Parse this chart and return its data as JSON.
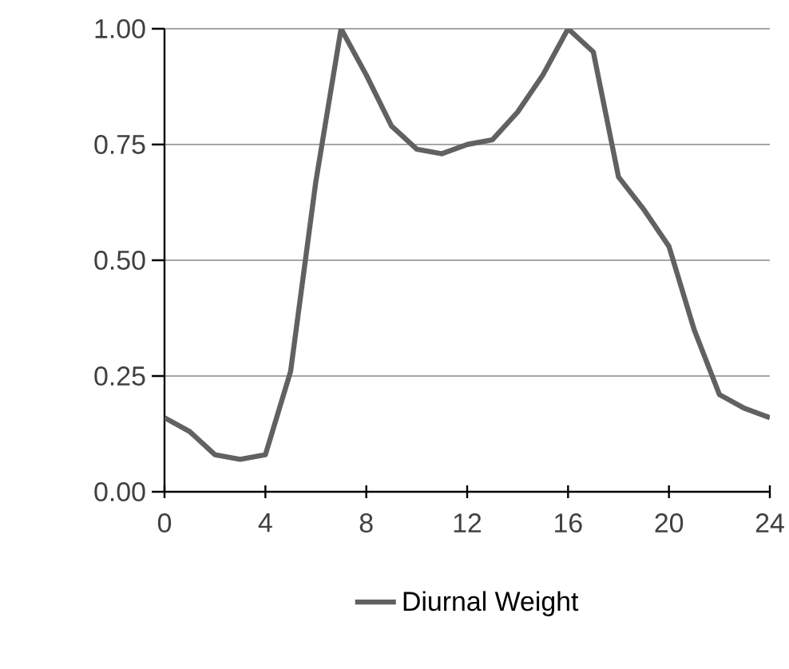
{
  "chart_data": {
    "type": "line",
    "x": [
      0,
      1,
      2,
      3,
      4,
      5,
      6,
      7,
      8,
      9,
      10,
      11,
      12,
      13,
      14,
      15,
      16,
      17,
      18,
      19,
      20,
      21,
      22,
      23,
      24
    ],
    "series": [
      {
        "name": "Diurnal Weight",
        "color": "#616161",
        "values": [
          0.16,
          0.13,
          0.08,
          0.07,
          0.08,
          0.26,
          0.67,
          1.0,
          0.9,
          0.79,
          0.74,
          0.73,
          0.75,
          0.76,
          0.82,
          0.9,
          1.0,
          0.95,
          0.68,
          0.61,
          0.53,
          0.35,
          0.21,
          0.18,
          0.16
        ]
      }
    ],
    "xlim": [
      0,
      24
    ],
    "xticks": [
      0,
      4,
      8,
      12,
      16,
      20,
      24
    ],
    "ylim": [
      0,
      1
    ],
    "yticks": [
      {
        "value": 0,
        "label": "0.00"
      },
      {
        "value": 0.25,
        "label": "0.25"
      },
      {
        "value": 0.5,
        "label": "0.50"
      },
      {
        "value": 0.75,
        "label": "0.75"
      },
      {
        "value": 1,
        "label": "1.00"
      }
    ],
    "grid": "y",
    "legend": "bottom",
    "marker": "none",
    "line_style": "solid"
  }
}
